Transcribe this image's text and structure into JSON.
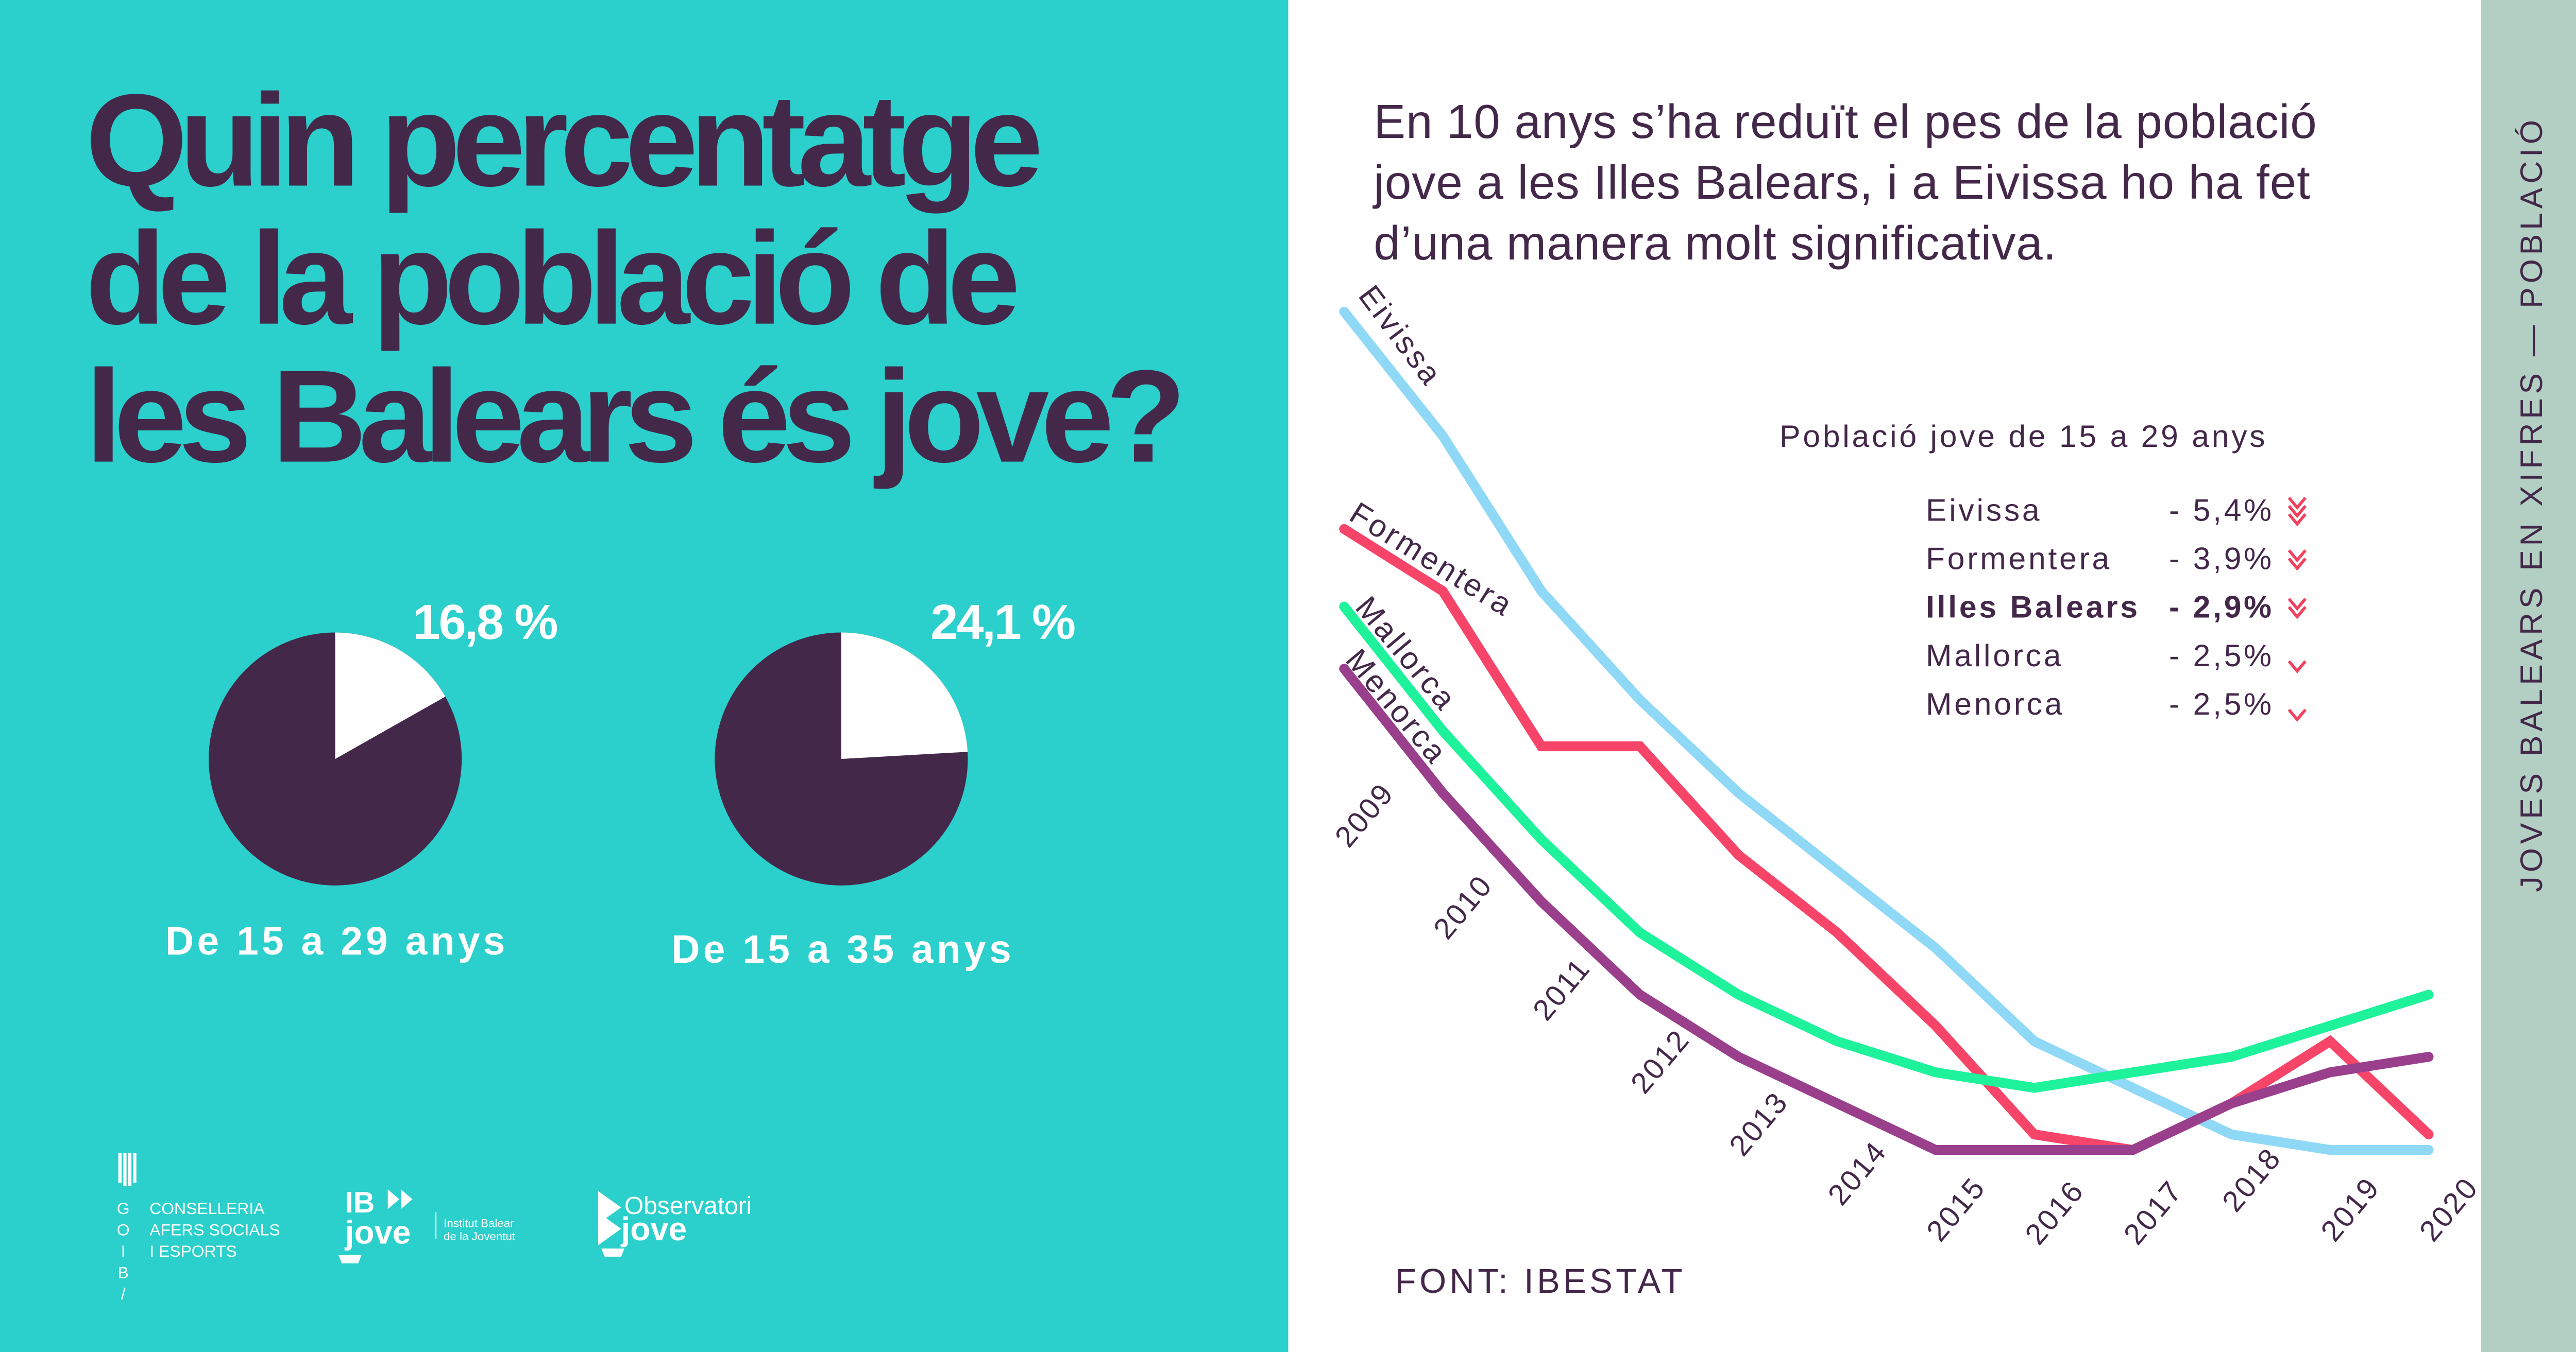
{
  "left": {
    "title_lines": [
      "Quin percentatge",
      "de la població de",
      "les Balears és jove?"
    ],
    "pies": [
      {
        "value_label": "16,8 %",
        "value": 16.8,
        "caption": "De 15 a 29 anys"
      },
      {
        "value_label": "24,1 %",
        "value": 24.1,
        "caption": "De 15 a 35 anys"
      }
    ],
    "logos": {
      "goib_letters": [
        "G",
        "O",
        "I",
        "B",
        "/"
      ],
      "conselleria": [
        "CONSELLERIA",
        "AFERS SOCIALS",
        "I ESPORTS"
      ],
      "ibjove": {
        "top": "IB",
        "bottom": "jove",
        "tagline": [
          "Institut Balear",
          "de la Joventut"
        ]
      },
      "observatori": {
        "top": "Observatori",
        "bottom": "jove"
      }
    }
  },
  "right": {
    "headline_lines": [
      "En 10 anys s’ha reduït el pes de la població",
      "jove a les Illes Balears, i a Eivissa ho ha fet",
      "d’una manera molt significativa."
    ],
    "source": "FONT: IBESTAT"
  },
  "sidebar": {
    "text": "JOVES BALEARS EN XIFRES — POBLACIÓ"
  },
  "colors": {
    "teal": "#2bcfcb",
    "dark": "#44284a",
    "sidebar": "#b3cfc3",
    "arrow": "#f2405e",
    "Eivissa": "#8fd9f7",
    "Formentera": "#f7456a",
    "Mallorca": "#1ef29a",
    "Menorca": "#9a3f8c"
  },
  "chart_data": {
    "type": "line",
    "title": "Població jove de 15 a 29 anys",
    "x": [
      "2009",
      "2010",
      "2011",
      "2012",
      "2013",
      "2014",
      "2015",
      "2016",
      "2017",
      "2018",
      "2019",
      "2020"
    ],
    "series": [
      {
        "name": "Eivissa",
        "values": [
          21.4,
          20.6,
          19.6,
          18.9,
          18.3,
          17.8,
          17.3,
          16.7,
          16.4,
          16.1,
          16.0,
          16.0
        ]
      },
      {
        "name": "Formentera",
        "values": [
          20.0,
          19.6,
          18.6,
          18.6,
          17.9,
          17.4,
          16.8,
          16.1,
          16.0,
          16.3,
          16.7,
          16.1
        ]
      },
      {
        "name": "Mallorca",
        "values": [
          19.5,
          18.7,
          18.0,
          17.4,
          17.0,
          16.7,
          16.5,
          16.4,
          16.5,
          16.6,
          16.8,
          17.0
        ]
      },
      {
        "name": "Menorca",
        "values": [
          19.1,
          18.3,
          17.6,
          17.0,
          16.6,
          16.3,
          16.0,
          16.0,
          16.0,
          16.3,
          16.5,
          16.6
        ]
      }
    ],
    "legend": [
      {
        "name": "Eivissa",
        "change": "- 5,4%",
        "arrows": 3,
        "bold": false
      },
      {
        "name": "Formentera",
        "change": "- 3,9%",
        "arrows": 2,
        "bold": false
      },
      {
        "name": "Illes Balears",
        "change": "- 2,9%",
        "arrows": 2,
        "bold": true
      },
      {
        "name": "Mallorca",
        "change": "- 2,5%",
        "arrows": 1,
        "bold": false
      },
      {
        "name": "Menorca",
        "change": "- 2,5%",
        "arrows": 1,
        "bold": false
      }
    ],
    "legend_placement": "top-right",
    "yaxis_visible": false,
    "grid": false
  }
}
